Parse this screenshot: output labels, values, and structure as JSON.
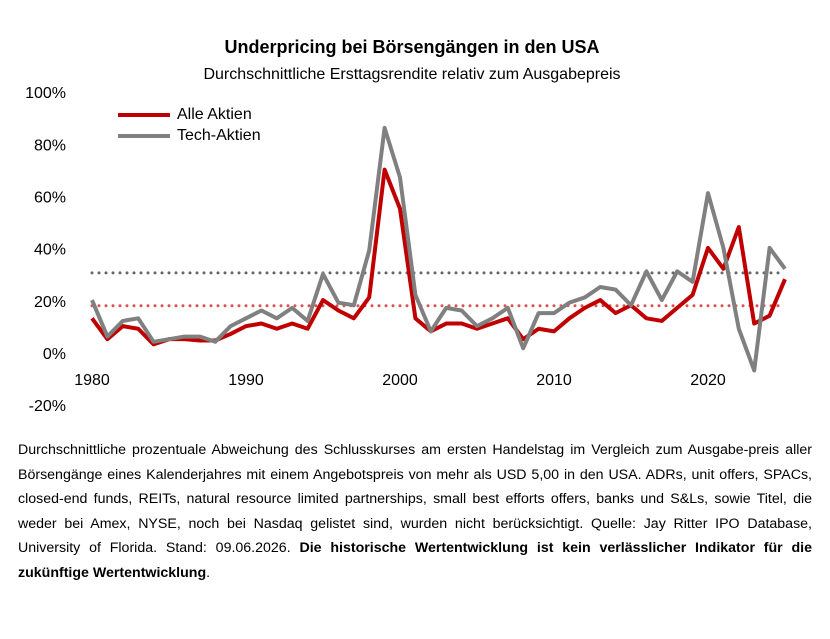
{
  "chart_data": {
    "type": "line",
    "title": "Underpricing bei Börsengängen in den USA",
    "subtitle": "Durchschnittliche Ersttagsrendite relativ zum Ausgabepreis",
    "x": [
      1980,
      1981,
      1982,
      1983,
      1984,
      1985,
      1986,
      1987,
      1988,
      1989,
      1990,
      1991,
      1992,
      1993,
      1994,
      1995,
      1996,
      1997,
      1998,
      1999,
      2000,
      2001,
      2002,
      2003,
      2004,
      2005,
      2006,
      2007,
      2008,
      2009,
      2010,
      2011,
      2012,
      2013,
      2014,
      2015,
      2016,
      2017,
      2018,
      2019,
      2020,
      2021,
      2022,
      2023,
      2024,
      2025
    ],
    "series": [
      {
        "name": "Alle Aktien",
        "color": "#c00000",
        "values": [
          14,
          6,
          11,
          10,
          4,
          6,
          6,
          5.5,
          5.5,
          8,
          11,
          12,
          10,
          12,
          10,
          21,
          17,
          14,
          22,
          71,
          56,
          14,
          9,
          12,
          12,
          10,
          12,
          14,
          6,
          10,
          9,
          14,
          18,
          21,
          16,
          19,
          14,
          13,
          18,
          23,
          41,
          33,
          49,
          12,
          15,
          29
        ]
      },
      {
        "name": "Tech-Aktien",
        "color": "#808080",
        "values": [
          21,
          7,
          13,
          14,
          5,
          6,
          7,
          7,
          5,
          11,
          14,
          17,
          14,
          18,
          13,
          31,
          20,
          19,
          40,
          87,
          68,
          23,
          9,
          18,
          17,
          11,
          14,
          18,
          2.5,
          16,
          16,
          20,
          22,
          26,
          25,
          19,
          32,
          21,
          32,
          28,
          62,
          41,
          10,
          -6,
          41,
          33
        ]
      }
    ],
    "reference_lines": [
      {
        "value": 18.8,
        "color": "#d9534f"
      },
      {
        "value": 31.4,
        "color": "#666666"
      }
    ],
    "xlim": [
      1980,
      2025
    ],
    "xticks": [
      1980,
      1990,
      2000,
      2010,
      2020
    ],
    "ylim": [
      -20,
      100
    ],
    "yticks": [
      {
        "value": -20,
        "label": "-20%"
      },
      {
        "value": 0,
        "label": "0%"
      },
      {
        "value": 20,
        "label": "20%"
      },
      {
        "value": 40,
        "label": "40%"
      },
      {
        "value": 60,
        "label": "60%"
      },
      {
        "value": 80,
        "label": "80%"
      },
      {
        "value": 100,
        "label": "100%"
      }
    ],
    "grid": false,
    "legend": "top-left",
    "footnote": [
      "Durchschnittliche prozentuale Abweichung des Schlusskurses am ersten Handelstag im Vergleich zum Ausgabe-preis aller Börsengänge eines Kalenderjahres mit einem Angebotspreis von mehr als USD 5,00 in den USA. ADRs, unit offers, SPACs, closed-end funds, REITs, natural resource limited partnerships, small best efforts offers, banks und S&Ls, sowie Titel, die weder bei Amex, NYSE, noch bei Nasdaq gelistet sind, wurden nicht berücksichtigt. Quelle: Jay Ritter IPO Database, University of Florida. Stand: 09.06.2026. ",
      "Die historische Wertentwicklung ist kein verlässlicher Indikator für die zukünftige Wertentwicklung",
      "."
    ]
  }
}
